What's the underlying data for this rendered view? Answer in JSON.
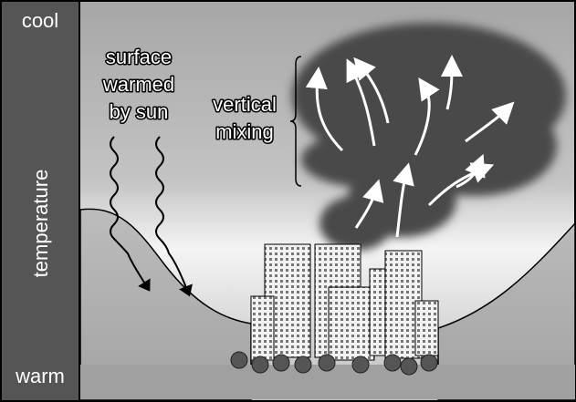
{
  "sidebar": {
    "top": "cool",
    "label": "temperature",
    "bottom": "warm"
  },
  "annotations": {
    "surface": [
      "surface",
      "warmed",
      "by sun"
    ],
    "mixing": [
      "vertical",
      "mixing"
    ]
  }
}
